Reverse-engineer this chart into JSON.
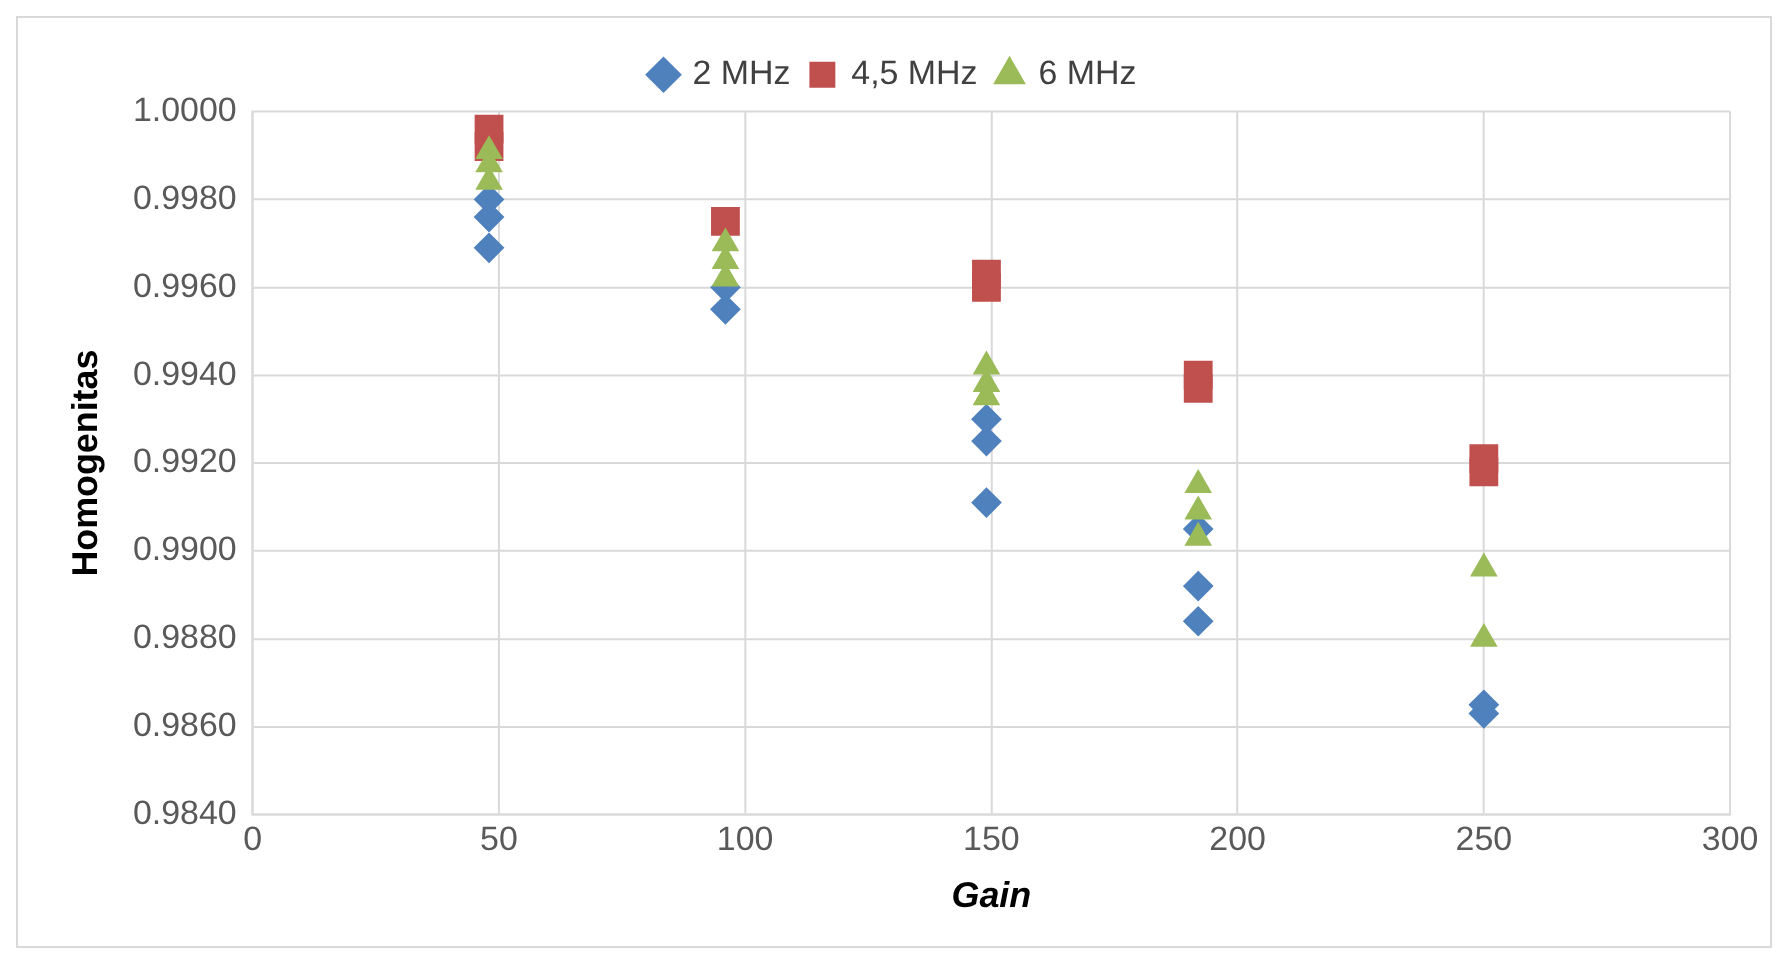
{
  "chart_data": {
    "type": "scatter",
    "xlabel": "Gain",
    "ylabel": "Homogenitas",
    "xlim": [
      0,
      300
    ],
    "xticks": [
      0,
      50,
      100,
      150,
      200,
      250,
      300
    ],
    "ylim": [
      0.984,
      1.0
    ],
    "yticks": [
      {
        "value": 0.984,
        "label": "0.9840"
      },
      {
        "value": 0.986,
        "label": "0.9860"
      },
      {
        "value": 0.988,
        "label": "0.9880"
      },
      {
        "value": 0.99,
        "label": "0.9900"
      },
      {
        "value": 0.992,
        "label": "0.9920"
      },
      {
        "value": 0.994,
        "label": "0.9940"
      },
      {
        "value": 0.996,
        "label": "0.9960"
      },
      {
        "value": 0.998,
        "label": "0.9980"
      },
      {
        "value": 1.0,
        "label": "1.0000"
      }
    ],
    "grid": true,
    "legend": "top",
    "series": [
      {
        "name": "2 MHz",
        "color": "#4f81bd",
        "marker": "diamond",
        "x": [
          48,
          48,
          48,
          96,
          96,
          149,
          149,
          149,
          192,
          192,
          192,
          250,
          250
        ],
        "values": [
          0.9969,
          0.9976,
          0.998,
          0.9955,
          0.996,
          0.9911,
          0.9925,
          0.993,
          0.9884,
          0.9892,
          0.9905,
          0.9863,
          0.9865
        ]
      },
      {
        "name": "4,5 MHz",
        "color": "#c0504d",
        "marker": "square",
        "x": [
          48,
          48,
          96,
          149,
          149,
          192,
          192,
          250,
          250
        ],
        "values": [
          0.9996,
          0.9992,
          0.9975,
          0.9963,
          0.996,
          0.994,
          0.9937,
          0.9921,
          0.9918
        ]
      },
      {
        "name": "6 MHz",
        "color": "#9bbb59",
        "marker": "triangle",
        "x": [
          48,
          48,
          48,
          96,
          96,
          96,
          149,
          149,
          149,
          192,
          192,
          192,
          250,
          250
        ],
        "values": [
          0.9991,
          0.9988,
          0.9984,
          0.997,
          0.9966,
          0.9962,
          0.9942,
          0.9938,
          0.9935,
          0.9915,
          0.9909,
          0.9903,
          0.9896,
          0.988
        ]
      }
    ]
  }
}
